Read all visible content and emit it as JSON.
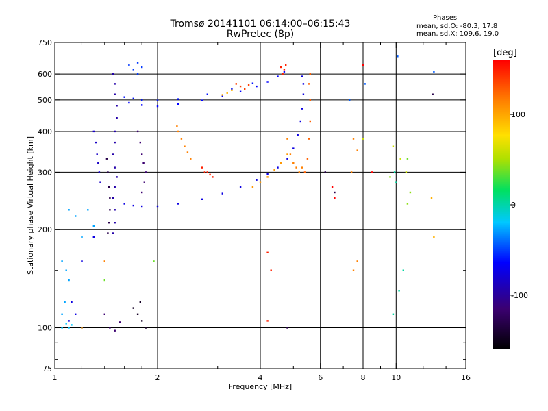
{
  "header": {
    "title": "Tromsø 20141101 06:14:00–06:15:43",
    "subtitle": "RwPretec (8p)",
    "phases_label": "Phases",
    "phase_o": "mean, sd,O: -80.3, 17.8",
    "phase_x": "mean, sd,X: 109.6, 19.0"
  },
  "colorbar": {
    "unit": "[deg]",
    "ticks": [
      100,
      0,
      -100
    ],
    "range": [
      -160,
      160
    ]
  },
  "chart_data": {
    "type": "scatter",
    "xlabel": "Frequency [MHz]",
    "ylabel": "Stationary phase Virtual Height [km]",
    "xscale": "log",
    "yscale": "log",
    "xlim": [
      1,
      16
    ],
    "ylim": [
      75,
      750
    ],
    "xticks": [
      1,
      2,
      4,
      6,
      8,
      10,
      16
    ],
    "xgrid": [
      2,
      4,
      6,
      8,
      10
    ],
    "xminor": [
      1.2,
      1.4,
      1.6,
      1.8,
      3,
      5,
      7,
      9,
      12,
      14
    ],
    "yticks": [
      75,
      100,
      200,
      300,
      400,
      500,
      600,
      750
    ],
    "ygrid": [
      100,
      200,
      300,
      400,
      500,
      600
    ],
    "yminor": [
      80,
      90,
      150
    ],
    "grid": true,
    "series": [
      {
        "phase": -110,
        "points": [
          [
            1.6,
            240
          ],
          [
            1.7,
            237
          ],
          [
            1.8,
            236
          ],
          [
            2.0,
            236
          ],
          [
            2.3,
            240
          ],
          [
            2.7,
            248
          ],
          [
            3.1,
            258
          ],
          [
            3.5,
            270
          ],
          [
            3.9,
            284
          ],
          [
            4.2,
            296
          ],
          [
            4.5,
            310
          ],
          [
            4.8,
            330
          ],
          [
            5.0,
            355
          ],
          [
            5.15,
            390
          ],
          [
            5.25,
            430
          ],
          [
            5.3,
            470
          ],
          [
            5.35,
            520
          ],
          [
            5.35,
            560
          ],
          [
            5.3,
            590
          ]
        ]
      },
      {
        "phase": -105,
        "points": [
          [
            1.65,
            490
          ],
          [
            1.8,
            482
          ],
          [
            2.0,
            478
          ],
          [
            2.3,
            485
          ],
          [
            2.7,
            498
          ],
          [
            3.1,
            513
          ],
          [
            3.5,
            530
          ],
          [
            3.9,
            550
          ],
          [
            4.2,
            568
          ],
          [
            4.5,
            590
          ],
          [
            4.7,
            610
          ]
        ]
      },
      {
        "phase": -100,
        "points": [
          [
            1.6,
            510
          ],
          [
            1.7,
            505
          ],
          [
            1.8,
            500
          ],
          [
            2.0,
            498
          ],
          [
            2.3,
            503
          ],
          [
            2.8,
            520
          ],
          [
            3.3,
            540
          ],
          [
            3.8,
            562
          ]
        ]
      },
      {
        "phase": -120,
        "points": [
          [
            1.48,
            600
          ],
          [
            1.5,
            560
          ],
          [
            1.5,
            520
          ],
          [
            1.52,
            480
          ],
          [
            1.52,
            440
          ],
          [
            1.5,
            400
          ],
          [
            1.5,
            370
          ],
          [
            1.48,
            340
          ],
          [
            1.5,
            310
          ],
          [
            1.52,
            290
          ],
          [
            1.5,
            270
          ],
          [
            1.48,
            250
          ],
          [
            1.5,
            230
          ],
          [
            1.5,
            210
          ],
          [
            1.48,
            195
          ]
        ]
      },
      {
        "phase": -140,
        "points": [
          [
            1.42,
            330
          ],
          [
            1.43,
            300
          ],
          [
            1.44,
            270
          ],
          [
            1.45,
            250
          ],
          [
            1.45,
            230
          ],
          [
            1.44,
            210
          ],
          [
            1.43,
            195
          ]
        ]
      },
      {
        "phase": -90,
        "points": [
          [
            1.65,
            640
          ],
          [
            1.7,
            620
          ],
          [
            1.75,
            600
          ],
          [
            1.8,
            630
          ],
          [
            1.75,
            650
          ]
        ]
      },
      {
        "phase": 120,
        "points": [
          [
            4.8,
            380
          ],
          [
            4.9,
            340
          ],
          [
            5.0,
            320
          ],
          [
            5.1,
            310
          ],
          [
            5.2,
            300
          ],
          [
            5.3,
            310
          ]
        ]
      },
      {
        "phase": 130,
        "points": [
          [
            5.4,
            300
          ],
          [
            5.5,
            330
          ],
          [
            5.55,
            380
          ],
          [
            5.6,
            430
          ],
          [
            5.6,
            500
          ],
          [
            5.55,
            560
          ],
          [
            5.6,
            600
          ]
        ]
      },
      {
        "phase": 110,
        "points": [
          [
            3.8,
            270
          ],
          [
            4.0,
            280
          ],
          [
            4.2,
            290
          ],
          [
            4.4,
            305
          ],
          [
            4.6,
            320
          ],
          [
            4.8,
            340
          ]
        ]
      },
      {
        "phase": 150,
        "points": [
          [
            2.9,
            290
          ],
          [
            2.8,
            300
          ],
          [
            2.7,
            310
          ],
          [
            2.75,
            300
          ],
          [
            2.85,
            295
          ]
        ]
      },
      {
        "phase": 120,
        "points": [
          [
            2.5,
            330
          ],
          [
            2.45,
            345
          ],
          [
            2.4,
            360
          ],
          [
            2.35,
            380
          ],
          [
            2.3,
            400
          ],
          [
            2.28,
            415
          ]
        ]
      },
      {
        "phase": 140,
        "points": [
          [
            3.6,
            540
          ],
          [
            3.5,
            550
          ],
          [
            3.4,
            560
          ],
          [
            3.7,
            555
          ]
        ]
      },
      {
        "phase": -60,
        "points": [
          [
            1.1,
            230
          ],
          [
            1.15,
            220
          ],
          [
            1.2,
            190
          ],
          [
            1.3,
            205
          ],
          [
            1.05,
            160
          ],
          [
            1.08,
            150
          ],
          [
            1.1,
            140
          ],
          [
            1.07,
            120
          ],
          [
            1.05,
            110
          ],
          [
            1.25,
            230
          ]
        ]
      },
      {
        "phase": -50,
        "points": [
          [
            1.05,
            100
          ],
          [
            1.08,
            103
          ],
          [
            1.1,
            100
          ],
          [
            1.12,
            102
          ],
          [
            1.2,
            100
          ]
        ]
      },
      {
        "phase": -115,
        "points": [
          [
            1.3,
            400
          ],
          [
            1.32,
            370
          ],
          [
            1.33,
            340
          ],
          [
            1.34,
            320
          ],
          [
            1.35,
            300
          ],
          [
            1.36,
            280
          ]
        ]
      },
      {
        "phase": -130,
        "points": [
          [
            1.75,
            400
          ],
          [
            1.78,
            370
          ],
          [
            1.8,
            340
          ],
          [
            1.82,
            320
          ],
          [
            1.85,
            300
          ],
          [
            1.83,
            280
          ],
          [
            1.8,
            260
          ]
        ]
      },
      {
        "phase": -150,
        "points": [
          [
            1.75,
            110
          ],
          [
            1.8,
            105
          ],
          [
            1.85,
            100
          ],
          [
            1.78,
            120
          ],
          [
            1.7,
            115
          ]
        ]
      },
      {
        "phase": -130,
        "points": [
          [
            1.45,
            100
          ],
          [
            1.5,
            98
          ],
          [
            1.55,
            104
          ],
          [
            1.4,
            110
          ]
        ]
      },
      {
        "phase": 150,
        "points": [
          [
            4.2,
            105
          ],
          [
            4.3,
            150
          ],
          [
            4.2,
            170
          ]
        ]
      },
      {
        "phase": 120,
        "points": [
          [
            7.5,
            380
          ],
          [
            7.7,
            350
          ],
          [
            7.4,
            300
          ],
          [
            7.7,
            160
          ],
          [
            7.5,
            150
          ]
        ]
      },
      {
        "phase": -20,
        "points": [
          [
            10.5,
            150
          ],
          [
            10.2,
            130
          ],
          [
            9.8,
            110
          ],
          [
            10.0,
            280
          ],
          [
            9.9,
            300
          ]
        ]
      },
      {
        "phase": 40,
        "points": [
          [
            10.8,
            240
          ],
          [
            11.0,
            260
          ],
          [
            9.6,
            290
          ]
        ]
      },
      {
        "phase": 100,
        "points": [
          [
            12.9,
            190
          ],
          [
            12.7,
            250
          ]
        ]
      },
      {
        "phase": -80,
        "points": [
          [
            10.1,
            680
          ],
          [
            12.9,
            610
          ],
          [
            8.1,
            560
          ],
          [
            7.3,
            500
          ]
        ]
      },
      {
        "phase": 160,
        "points": [
          [
            8.0,
            640
          ],
          [
            6.5,
            270
          ],
          [
            6.6,
            250
          ],
          [
            8.5,
            300
          ]
        ]
      },
      {
        "phase": -140,
        "points": [
          [
            12.8,
            520
          ],
          [
            6.2,
            300
          ],
          [
            6.6,
            260
          ],
          [
            4.8,
            100
          ]
        ]
      },
      {
        "phase": 60,
        "points": [
          [
            8.0,
            380
          ],
          [
            9.8,
            360
          ],
          [
            10.3,
            330
          ],
          [
            10.7,
            300
          ]
        ]
      },
      {
        "phase": -110,
        "points": [
          [
            1.3,
            190
          ],
          [
            1.2,
            160
          ],
          [
            1.12,
            120
          ],
          [
            1.1,
            105
          ],
          [
            1.15,
            110
          ]
        ]
      },
      {
        "phase": 120,
        "points": [
          [
            1.4,
            160
          ],
          [
            1.2,
            100
          ]
        ]
      },
      {
        "phase": 30,
        "points": [
          [
            1.4,
            140
          ],
          [
            1.95,
            160
          ],
          [
            10.8,
            330
          ]
        ]
      },
      {
        "phase": 150,
        "points": [
          [
            4.6,
            630
          ],
          [
            4.7,
            620
          ],
          [
            4.75,
            640
          ],
          [
            4.65,
            600
          ]
        ]
      },
      {
        "phase": 100,
        "points": [
          [
            3.2,
            525
          ],
          [
            3.3,
            535
          ],
          [
            3.1,
            518
          ]
        ]
      }
    ]
  }
}
